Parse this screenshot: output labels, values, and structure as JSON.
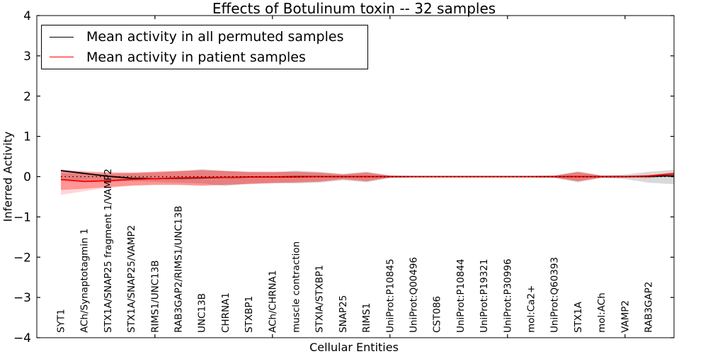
{
  "chart_data": {
    "type": "line",
    "title": "Effects of Botulinum toxin -- 32 samples",
    "xlabel": "Cellular Entities",
    "ylabel": "Inferred Activity",
    "ylim": [
      -4,
      4
    ],
    "yticks": [
      -4,
      -3,
      -2,
      -1,
      0,
      1,
      2,
      3,
      4
    ],
    "major_xtick_indices": [
      4,
      9,
      14,
      19,
      24
    ],
    "grid": false,
    "legend_position": "upper left",
    "categories": [
      "SYT1",
      "ACh/Synaptotagmin 1",
      "STX1A/SNAP25 fragment 1/VAMP2",
      "STX1A/SNAP25/VAMP2",
      "RIMS1/UNC13B",
      "RAB3GAP2/RIMS1/UNC13B",
      "UNC13B",
      "CHRNA1",
      "STXBP1",
      "ACh/CHRNA1",
      "muscle contraction",
      "STXIA/STXBP1",
      "SNAP25",
      "RIMS1",
      "UniProt:P10845",
      "UniProt:Q00496",
      "CST086",
      "UniProt:P10844",
      "UniProt:P19321",
      "UniProt:P30996",
      "mol:Ca2+",
      "UniProt:Q60393",
      "STX1A",
      "mol:ACh",
      "VAMP2",
      "RAB3GAP2"
    ],
    "series": [
      {
        "name": "Mean activity in all permuted samples",
        "color": "#000000",
        "style": "solid",
        "values": [
          0.15,
          0.08,
          0.01,
          -0.04,
          -0.05,
          -0.04,
          -0.03,
          -0.02,
          -0.01,
          -0.01,
          0,
          0,
          0,
          0,
          0,
          0,
          0,
          0,
          0,
          0,
          0,
          0,
          0,
          0,
          0,
          0.01
        ],
        "edge": 0.02
      },
      {
        "name": "Mean activity in patient samples",
        "color": "#ff0000",
        "style": "solid",
        "values": [
          -0.07,
          -0.12,
          -0.1,
          -0.07,
          -0.05,
          -0.03,
          -0.02,
          -0.02,
          -0.01,
          -0.01,
          -0.01,
          0,
          0,
          0,
          0,
          0,
          0,
          0,
          0,
          0,
          0,
          0,
          0,
          0,
          0,
          0.02
        ],
        "edge": 0.07
      },
      {
        "name": "zero baseline",
        "color": "#000000",
        "style": "dotted",
        "values": [
          0,
          0,
          0,
          0,
          0,
          0,
          0,
          0,
          0,
          0,
          0,
          0,
          0,
          0,
          0,
          0,
          0,
          0,
          0,
          0,
          0,
          0,
          0,
          0,
          0,
          0
        ],
        "edge": 0
      }
    ],
    "bands": [
      {
        "name": "permuted-samples",
        "color": "#888888",
        "alpha": 0.32,
        "upper": [
          0.09,
          0.07,
          0.06,
          0.08,
          0.1,
          0.13,
          0.19,
          0.14,
          0.11,
          0.1,
          0.15,
          0.12,
          0.07,
          0.12,
          0.03,
          0.02,
          0.02,
          0.02,
          0.02,
          0.02,
          0.02,
          0.03,
          0.13,
          0.03,
          0.05,
          0.12
        ],
        "lower": [
          -0.1,
          -0.11,
          -0.12,
          -0.11,
          -0.13,
          -0.15,
          -0.17,
          -0.23,
          -0.17,
          -0.15,
          -0.17,
          -0.15,
          -0.09,
          -0.14,
          -0.03,
          -0.02,
          -0.02,
          -0.02,
          -0.02,
          -0.02,
          -0.02,
          -0.03,
          -0.14,
          -0.03,
          -0.06,
          -0.15
        ],
        "edge_upper": 0.17,
        "edge_lower": -0.19
      },
      {
        "name": "patient-samples-outer",
        "color": "#ff0000",
        "alpha": 0.16,
        "upper": [
          0.18,
          0.14,
          0.11,
          0.1,
          0.12,
          0.14,
          0.16,
          0.14,
          0.12,
          0.12,
          0.12,
          0.1,
          0.06,
          0.11,
          0.03,
          0.02,
          0.02,
          0.02,
          0.02,
          0.02,
          0.02,
          0.03,
          0.12,
          0.03,
          0.03,
          0.04
        ],
        "lower": [
          -0.45,
          -0.36,
          -0.28,
          -0.23,
          -0.21,
          -0.21,
          -0.23,
          -0.21,
          -0.19,
          -0.17,
          -0.15,
          -0.13,
          -0.07,
          -0.12,
          -0.03,
          -0.02,
          -0.02,
          -0.02,
          -0.02,
          -0.02,
          -0.02,
          -0.03,
          -0.12,
          -0.03,
          -0.03,
          -0.04
        ],
        "edge_upper": 0.11,
        "edge_lower": 0.02
      },
      {
        "name": "patient-samples",
        "color": "#ff0000",
        "alpha": 0.3,
        "upper": [
          0.15,
          0.12,
          0.1,
          0.1,
          0.12,
          0.14,
          0.16,
          0.14,
          0.12,
          0.12,
          0.12,
          0.1,
          0.05,
          0.1,
          0.02,
          0.01,
          0.01,
          0.01,
          0.01,
          0.01,
          0.01,
          0.02,
          0.11,
          0.02,
          0.02,
          0.03
        ],
        "lower": [
          -0.33,
          -0.3,
          -0.26,
          -0.22,
          -0.2,
          -0.2,
          -0.22,
          -0.2,
          -0.18,
          -0.16,
          -0.14,
          -0.12,
          -0.06,
          -0.11,
          -0.02,
          -0.01,
          -0.01,
          -0.01,
          -0.01,
          -0.01,
          -0.01,
          -0.02,
          -0.11,
          -0.02,
          -0.02,
          -0.03
        ],
        "edge_upper": 0.1,
        "edge_lower": 0.03
      }
    ]
  }
}
